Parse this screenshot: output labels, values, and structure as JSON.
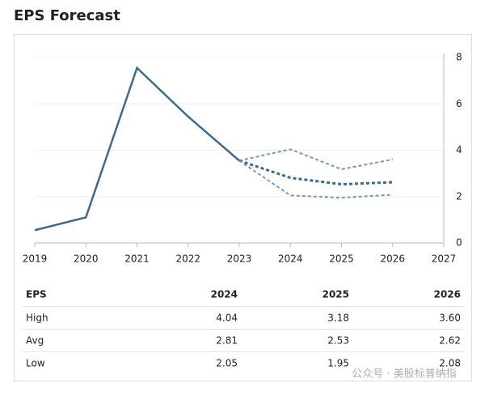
{
  "chart_data": {
    "type": "line",
    "title": "EPS Forecast",
    "x": [
      2019,
      2020,
      2021,
      2022,
      2023,
      2024,
      2025,
      2026
    ],
    "xlim": [
      2019,
      2027
    ],
    "xticks": [
      2019,
      2020,
      2021,
      2022,
      2023,
      2024,
      2025,
      2026,
      2027
    ],
    "ylim": [
      0,
      8
    ],
    "yticks": [
      0,
      2,
      4,
      6,
      8
    ],
    "grid": true,
    "series": [
      {
        "color": "#3d6a8e",
        "dashed": false,
        "values": [
          0.55,
          1.1,
          7.55,
          5.45,
          3.55,
          null,
          null,
          null
        ]
      },
      {
        "color": "#7099bb",
        "dashed": true,
        "values": [
          null,
          null,
          null,
          null,
          3.55,
          4.04,
          3.18,
          3.6
        ]
      },
      {
        "color": "#3d6a8e",
        "dashed": true,
        "values": [
          null,
          null,
          null,
          null,
          3.55,
          2.81,
          2.53,
          2.62
        ]
      },
      {
        "color": "#7099bb",
        "dashed": true,
        "values": [
          null,
          null,
          null,
          null,
          3.55,
          2.05,
          1.95,
          2.08
        ]
      }
    ]
  },
  "table": {
    "header": [
      "EPS",
      "2024",
      "2025",
      "2026"
    ],
    "rows": [
      [
        "High",
        "4.04",
        "3.18",
        "3.60"
      ],
      [
        "Avg",
        "2.81",
        "2.53",
        "2.62"
      ],
      [
        "Low",
        "2.05",
        "1.95",
        "2.08"
      ]
    ]
  },
  "watermark": "公众号 · 美股标普纳指"
}
